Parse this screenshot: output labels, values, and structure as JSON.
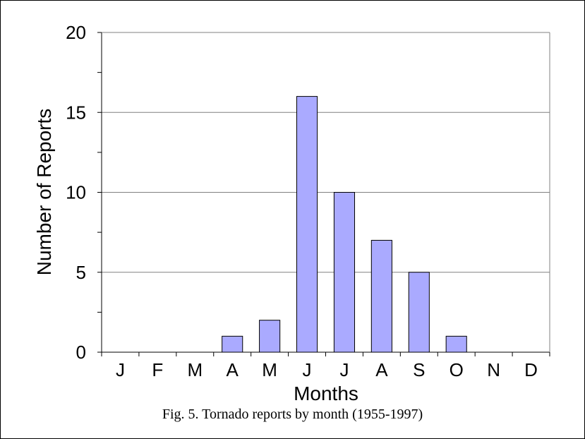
{
  "chart_data": {
    "type": "bar",
    "categories": [
      "J",
      "F",
      "M",
      "A",
      "M",
      "J",
      "J",
      "A",
      "S",
      "O",
      "N",
      "D"
    ],
    "values": [
      0,
      0,
      0,
      1,
      2,
      16,
      10,
      7,
      5,
      1,
      0,
      0
    ],
    "xlabel": "Months",
    "ylabel": "Number of Reports",
    "ylim": [
      0,
      20
    ],
    "yticks": [
      "0",
      "5",
      "10",
      "15",
      "20"
    ],
    "grid": true,
    "bar_color": "#aaaaff"
  },
  "caption": "Fig. 5. Tornado reports by month (1955-1997)"
}
